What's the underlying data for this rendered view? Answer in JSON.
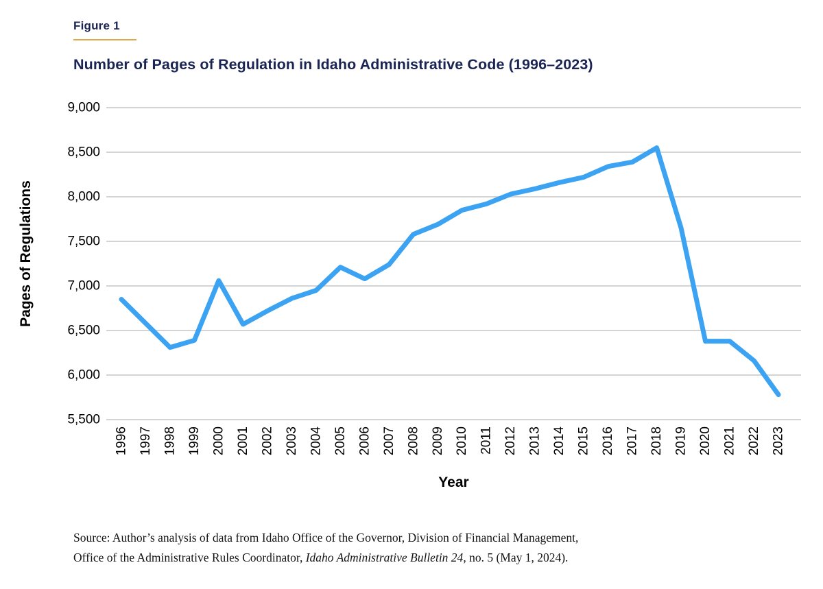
{
  "figure": {
    "label": "Figure 1"
  },
  "colors": {
    "title_navy": "#1B2553",
    "accent_gold": "#E2A843",
    "grid": "#C6C6C6",
    "tick_text": "#000000",
    "line_blue": "#3BA3F2"
  },
  "chart_data": {
    "type": "line",
    "title": "Number of Pages of Regulation in Idaho Administrative Code (1996–2023)",
    "xlabel": "Year",
    "ylabel": "Pages of Regulations",
    "x": [
      "1996",
      "1997",
      "1998",
      "1999",
      "2000",
      "2001",
      "2002",
      "2003",
      "2004",
      "2005",
      "2006",
      "2007",
      "2008",
      "2009",
      "2010",
      "2011",
      "2012",
      "2013",
      "2014",
      "2015",
      "2016",
      "2017",
      "2018",
      "2019",
      "2020",
      "2021",
      "2022",
      "2023"
    ],
    "series": [
      {
        "name": "Pages of Regulations",
        "values": [
          6850,
          6580,
          6310,
          6390,
          7060,
          6570,
          6720,
          6860,
          6950,
          7210,
          7080,
          7240,
          7580,
          7690,
          7850,
          7920,
          8030,
          8090,
          8160,
          8220,
          8340,
          8390,
          8550,
          7650,
          6380,
          6380,
          6160,
          5780
        ]
      }
    ],
    "ylim": [
      5500,
      9000
    ],
    "ytick_step": 500,
    "grid": true,
    "legend": "none",
    "line_width": 7
  },
  "source": {
    "line1": "Source: Author’s analysis of data from Idaho Office of the Governor, Division of Financial Management,",
    "line2_prefix": "Office of the Administrative Rules Coordinator, ",
    "line2_italic": "Idaho Administrative Bulletin 24",
    "line2_suffix": ", no. 5 (May 1, 2024)."
  }
}
